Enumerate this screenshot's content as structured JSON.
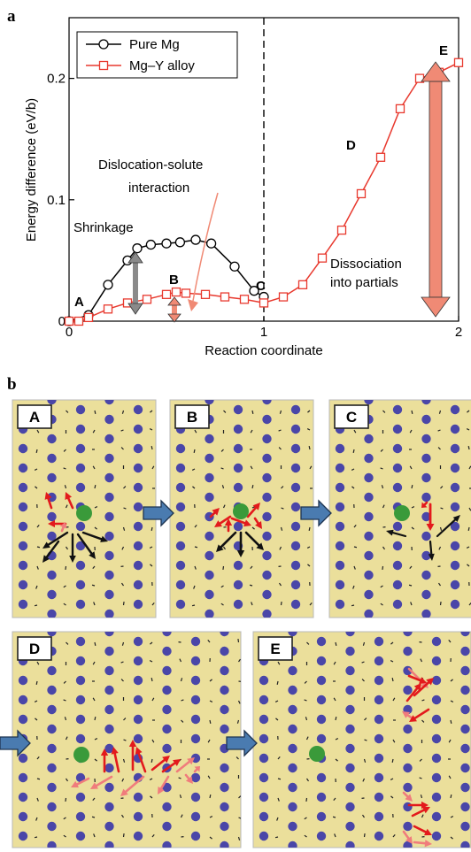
{
  "panels": {
    "a": "a",
    "b": "b"
  },
  "chart_data": {
    "type": "line",
    "xlabel": "Reaction coordinate",
    "ylabel": "Energy difference (eV/b)",
    "xlim": [
      0,
      2
    ],
    "ylim": [
      0,
      0.25
    ],
    "xticks": [
      "0",
      "1",
      "2"
    ],
    "yticks": [
      "0",
      "0.1",
      "0.2"
    ],
    "legend": "top-left",
    "series": [
      {
        "name": "Pure Mg",
        "marker": "circle",
        "color": "#000000",
        "x": [
          0.0,
          0.1,
          0.2,
          0.3,
          0.35,
          0.42,
          0.5,
          0.57,
          0.65,
          0.73,
          0.85,
          0.95,
          1.0
        ],
        "y": [
          0.0,
          0.005,
          0.03,
          0.05,
          0.06,
          0.063,
          0.064,
          0.065,
          0.067,
          0.064,
          0.045,
          0.025,
          0.02
        ]
      },
      {
        "name": "Mg–Y alloy",
        "marker": "square",
        "color": "#e8392e",
        "x": [
          0.0,
          0.05,
          0.1,
          0.2,
          0.3,
          0.4,
          0.5,
          0.55,
          0.6,
          0.7,
          0.8,
          0.9,
          1.0,
          1.1,
          1.2,
          1.3,
          1.4,
          1.5,
          1.6,
          1.7,
          1.8,
          1.9,
          2.0
        ],
        "y": [
          0.0,
          0.0,
          0.003,
          0.01,
          0.015,
          0.018,
          0.022,
          0.024,
          0.023,
          0.022,
          0.02,
          0.018,
          0.015,
          0.02,
          0.03,
          0.052,
          0.075,
          0.105,
          0.135,
          0.175,
          0.2,
          0.205,
          0.213
        ]
      }
    ],
    "annotations": {
      "A": "A",
      "B": "B",
      "C": "C",
      "D": "D",
      "E": "E",
      "shrinkage": "Shrinkage",
      "interaction_line1": "Dislocation-solute",
      "interaction_line2": "interaction",
      "dissociation_line1": "Dissociation",
      "dissociation_line2": "into partials"
    }
  },
  "states": [
    "A",
    "B",
    "C",
    "D",
    "E"
  ],
  "colors": {
    "pure_mg": "#000000",
    "alloy": "#e8392e",
    "arrow_fill": "#f08a75",
    "gray_arrow": "#8a8a8a",
    "panel_bg": "#ebdf9b",
    "atom": "#4a46a8",
    "solute": "#3a9a3a",
    "disp_red": "#e31a1c",
    "disp_pink": "#f07c7c",
    "flow_arrow": "#4a7bb0"
  }
}
